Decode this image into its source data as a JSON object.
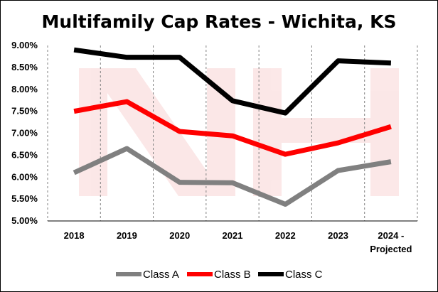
{
  "chart_data": {
    "type": "line",
    "title": "Multifamily Cap Rates - Wichita, KS",
    "categories": [
      "2018",
      "2019",
      "2020",
      "2021",
      "2022",
      "2023",
      "2024 -|Projected"
    ],
    "y_ticks": [
      "5.00%",
      "5.50%",
      "6.00%",
      "6.50%",
      "7.00%",
      "7.50%",
      "8.00%",
      "8.50%",
      "9.00%"
    ],
    "ylim": [
      5.0,
      9.0
    ],
    "grid": "vertical-dashed",
    "legend_position": "bottom",
    "series": [
      {
        "name": "Class A",
        "color": "#808080",
        "values": [
          6.1,
          6.65,
          5.88,
          5.87,
          5.38,
          6.15,
          6.35
        ]
      },
      {
        "name": "Class B",
        "color": "#ff0000",
        "values": [
          7.5,
          7.72,
          7.04,
          6.94,
          6.52,
          6.78,
          7.15
        ]
      },
      {
        "name": "Class C",
        "color": "#000000",
        "values": [
          8.9,
          8.73,
          8.73,
          7.74,
          7.46,
          8.65,
          8.6
        ]
      }
    ]
  }
}
